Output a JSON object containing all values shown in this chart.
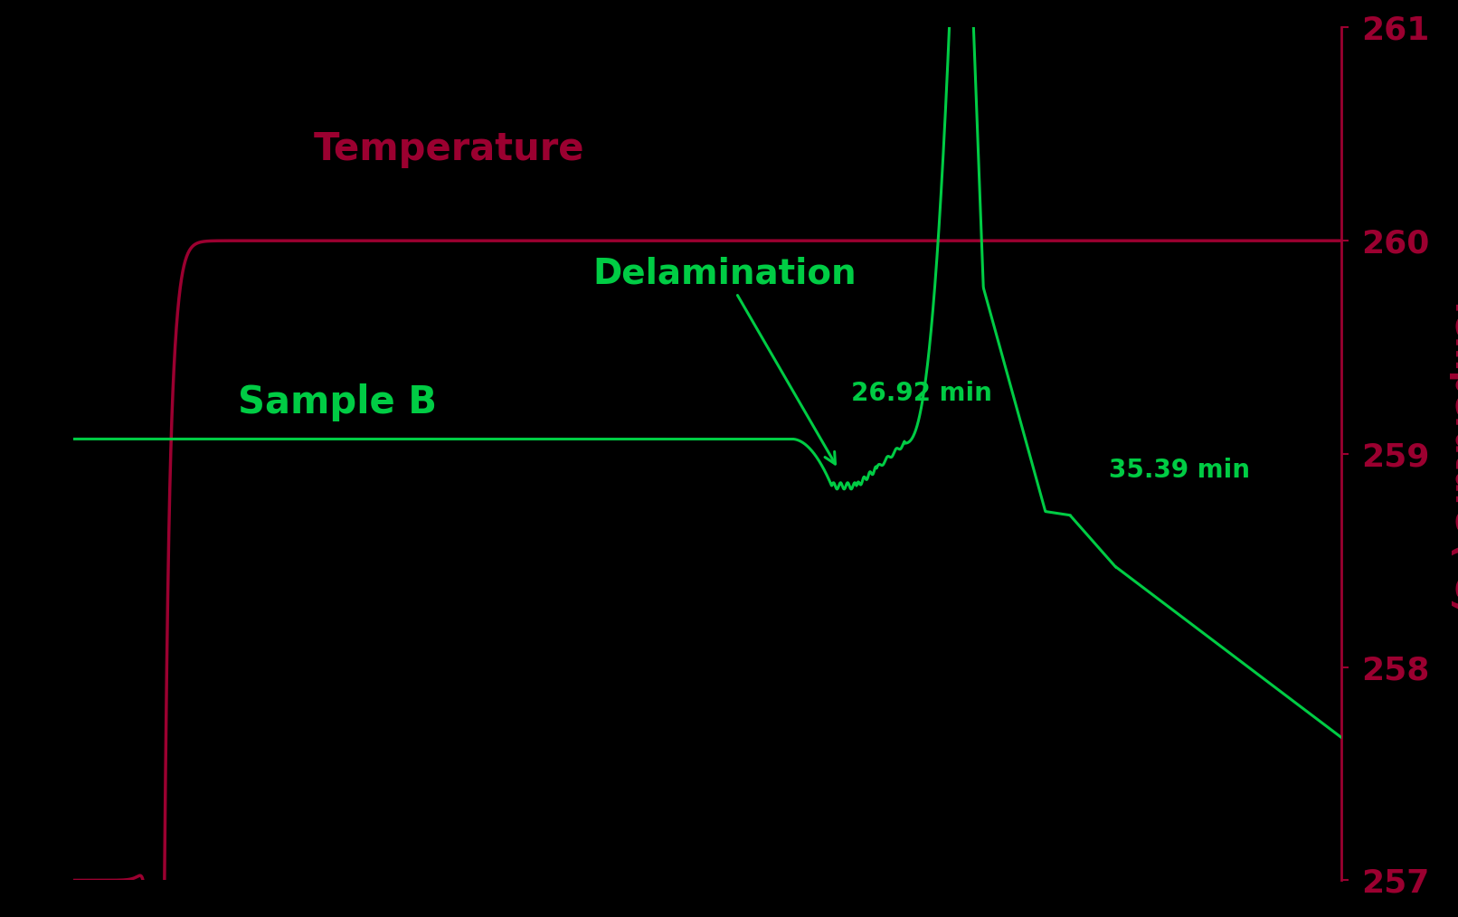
{
  "background_color": "#000000",
  "temp_color": "#9B0030",
  "sample_color": "#00CC44",
  "right_ylabel": "Temperature (°C)",
  "right_ylim": [
    257,
    261
  ],
  "right_yticks": [
    257,
    258,
    259,
    260,
    261
  ],
  "temp_label": "Temperature",
  "sample_label": "Sample B",
  "delamination_label": "Delamination",
  "annotation_2692": "26.92 min",
  "annotation_3539": "35.39 min",
  "figsize": [
    16.12,
    10.14
  ],
  "dpi": 100,
  "xlim": [
    0,
    45
  ]
}
